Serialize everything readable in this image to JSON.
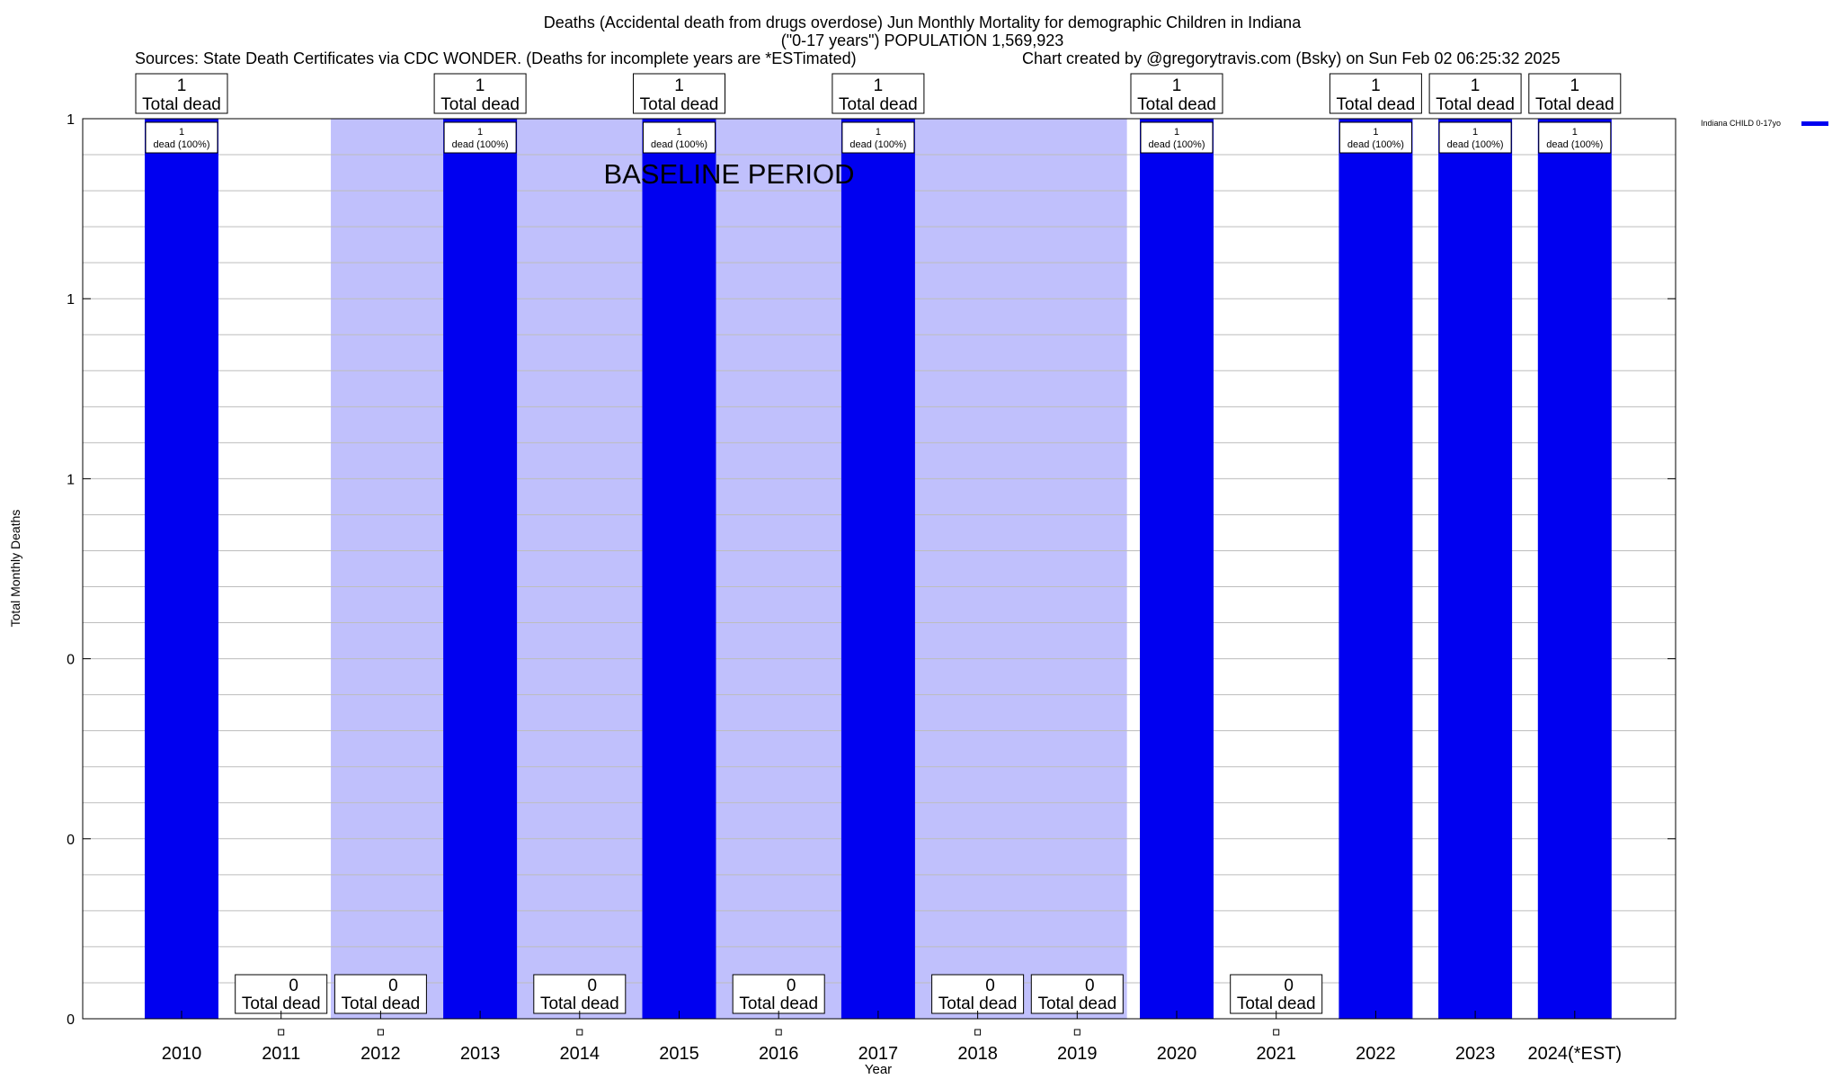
{
  "chart_data": {
    "type": "bar",
    "title_lines": [
      "Deaths (Accidental death from drugs overdose) Jun Monthly Mortality for demographic Children in Indiana",
      "(\"0-17 years\") POPULATION 1,569,923"
    ],
    "sources_text": "Sources: State Death Certificates via CDC WONDER. (Deaths for incomplete years are *ESTimated)",
    "credit_text": "Chart created by @gregorytravis.com (Bsky) on Sun Feb 02 06:25:32 2025",
    "xlabel": "Year",
    "ylabel": "Total Monthly Deaths",
    "ylim": [
      0,
      1
    ],
    "y_tick_values": [
      0,
      0.2,
      0.4,
      0.6,
      0.8,
      1.0
    ],
    "y_tick_labels": [
      "0",
      "0",
      "0",
      "1",
      "1",
      "1"
    ],
    "categories": [
      "2010",
      "2011",
      "2012",
      "2013",
      "2014",
      "2015",
      "2016",
      "2017",
      "2018",
      "2019",
      "2020",
      "2021",
      "2022",
      "2023",
      "2024(*EST)"
    ],
    "series": [
      {
        "name": "Indiana CHILD 0-17yo",
        "values": [
          1,
          0,
          0,
          1,
          0,
          1,
          0,
          1,
          0,
          0,
          1,
          0,
          1,
          1,
          1
        ]
      }
    ],
    "total_label_suffix": "Total dead",
    "inner_label_line2": "dead (100%)",
    "baseline_period": {
      "label": "BASELINE PERIOD",
      "start_category": "2012",
      "end_category": "2019"
    },
    "bar_color": "#0000f0",
    "baseline_color": "#c0c0fc",
    "legend_position": "top-right"
  }
}
